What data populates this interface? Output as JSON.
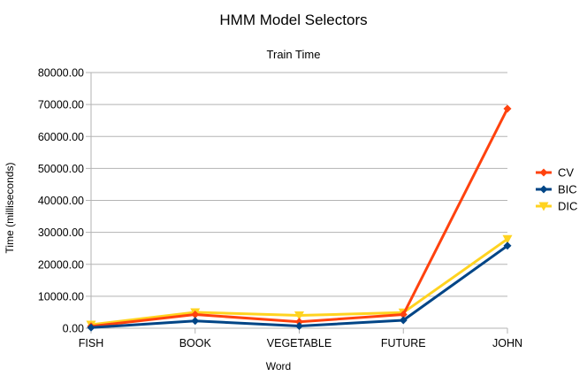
{
  "chart_data": {
    "type": "line",
    "title": "HMM Model Selectors",
    "subtitle": "Train Time",
    "xlabel": "Word",
    "ylabel": "Time (milliseconds)",
    "categories": [
      "FISH",
      "BOOK",
      "VEGETABLE",
      "FUTURE",
      "JOHN"
    ],
    "ylim": [
      0,
      80000
    ],
    "yticks": [
      0,
      10000,
      20000,
      30000,
      40000,
      50000,
      60000,
      70000,
      80000
    ],
    "ytick_labels": [
      "0.00",
      "10000.00",
      "20000.00",
      "30000.00",
      "40000.00",
      "50000.00",
      "60000.00",
      "70000.00",
      "80000.00"
    ],
    "grid": true,
    "legend_position": "right",
    "series": [
      {
        "name": "CV",
        "color": "#ff420e",
        "marker": "diamond",
        "values": [
          600,
          4300,
          2000,
          4300,
          68700
        ]
      },
      {
        "name": "BIC",
        "color": "#004586",
        "marker": "diamond",
        "values": [
          200,
          2300,
          700,
          2500,
          25800
        ]
      },
      {
        "name": "DIC",
        "color": "#ffd320",
        "marker": "triangle-down",
        "values": [
          1100,
          5000,
          4000,
          4900,
          27900
        ]
      }
    ]
  }
}
